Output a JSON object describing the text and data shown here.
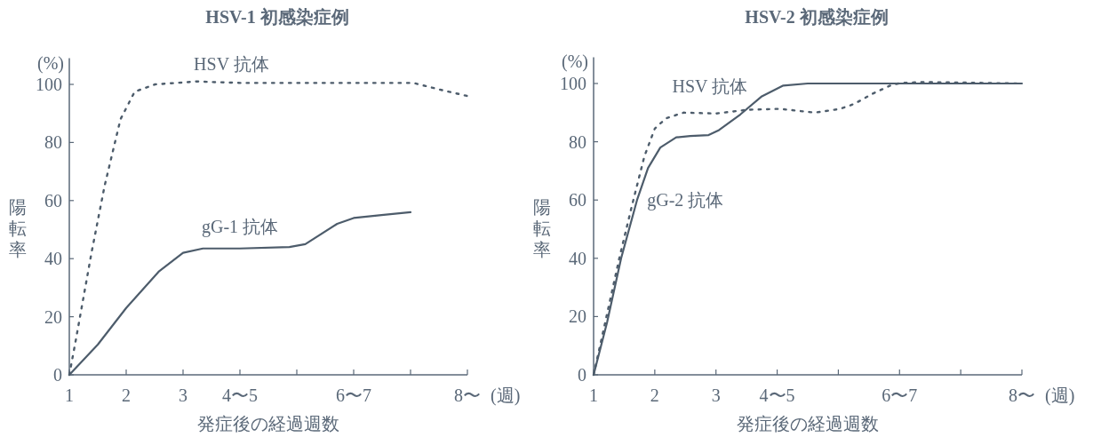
{
  "chart_data": [
    {
      "type": "line",
      "title": "HSV-1 初感染症例",
      "xlabel": "発症後の経過週数",
      "ylabel": "陽転率",
      "annotations": [
        "(%)",
        "(週)"
      ],
      "xlim": [
        1,
        8
      ],
      "ylim": [
        0,
        109
      ],
      "xticks": [
        1,
        2,
        3,
        {
          "value": 4,
          "label": "4〜5"
        },
        {
          "value": 5,
          "label": null
        },
        {
          "value": 6,
          "label": "6〜7"
        },
        {
          "value": 7,
          "label": null
        },
        {
          "value": 8,
          "label": "8〜"
        }
      ],
      "yticks": [
        0,
        20,
        40,
        60,
        80,
        100
      ],
      "grid": false,
      "legend": false,
      "marker": "none",
      "series": [
        {
          "name": "HSV 抗体",
          "color": "#4d5c6b",
          "line_style": "dotted",
          "x": [
            1,
            1.11,
            1.39,
            1.62,
            1.9,
            2.15,
            2.51,
            3.24,
            4,
            5,
            6,
            7.05,
            7.56,
            8
          ],
          "values": [
            0,
            11.5,
            42,
            65,
            88,
            97.5,
            100,
            101,
            100.5,
            100.5,
            100.5,
            100.5,
            98,
            96
          ]
        },
        {
          "name": "gG-1 抗体",
          "color": "#4d5c6b",
          "line_style": "solid",
          "x": [
            1,
            1.5,
            2,
            2.57,
            3,
            3.35,
            4,
            4.87,
            5.15,
            5.71,
            6,
            6.49,
            7
          ],
          "values": [
            0,
            10.4,
            23,
            35.5,
            42,
            43.5,
            43.5,
            44,
            45,
            52,
            54,
            55,
            56
          ]
        }
      ]
    },
    {
      "type": "line",
      "title": "HSV-2 初感染症例",
      "xlabel": "発症後の経過週数",
      "ylabel": "陽転率",
      "annotations": [
        "(%)",
        "(週)"
      ],
      "xlim": [
        1,
        8
      ],
      "ylim": [
        0,
        109
      ],
      "xticks": [
        1,
        2,
        3,
        {
          "value": 4,
          "label": "4〜5"
        },
        {
          "value": 5,
          "label": null
        },
        {
          "value": 6,
          "label": "6〜7"
        },
        {
          "value": 7,
          "label": null
        },
        {
          "value": 8,
          "label": "8〜"
        }
      ],
      "yticks": [
        0,
        20,
        40,
        60,
        80,
        100
      ],
      "grid": false,
      "legend": false,
      "marker": "none",
      "series": [
        {
          "name": "HSV 抗体",
          "color": "#4d5c6b",
          "line_style": "dotted",
          "x": [
            1,
            1.19,
            1.42,
            1.62,
            1.83,
            2,
            2.18,
            2.47,
            3,
            3.52,
            4.04,
            4.62,
            5.03,
            5.26,
            5.56,
            5.85,
            6.02,
            6.4,
            8
          ],
          "values": [
            0,
            18,
            40,
            57.5,
            75,
            84.5,
            88,
            90,
            89.7,
            91,
            91.3,
            90,
            91.3,
            93,
            96.5,
            99.3,
            100.2,
            100.5,
            100
          ]
        },
        {
          "name": "gG-2 抗体",
          "color": "#4d5c6b",
          "line_style": "solid",
          "x": [
            1,
            1.22,
            1.45,
            1.71,
            1.89,
            2.09,
            2.35,
            2.58,
            2.88,
            3.05,
            3.4,
            3.75,
            4.1,
            4.5,
            8
          ],
          "values": [
            0,
            18,
            40,
            60,
            71,
            78,
            81.5,
            82,
            82.3,
            84,
            89.4,
            95.6,
            99.3,
            100,
            100
          ]
        }
      ]
    }
  ]
}
